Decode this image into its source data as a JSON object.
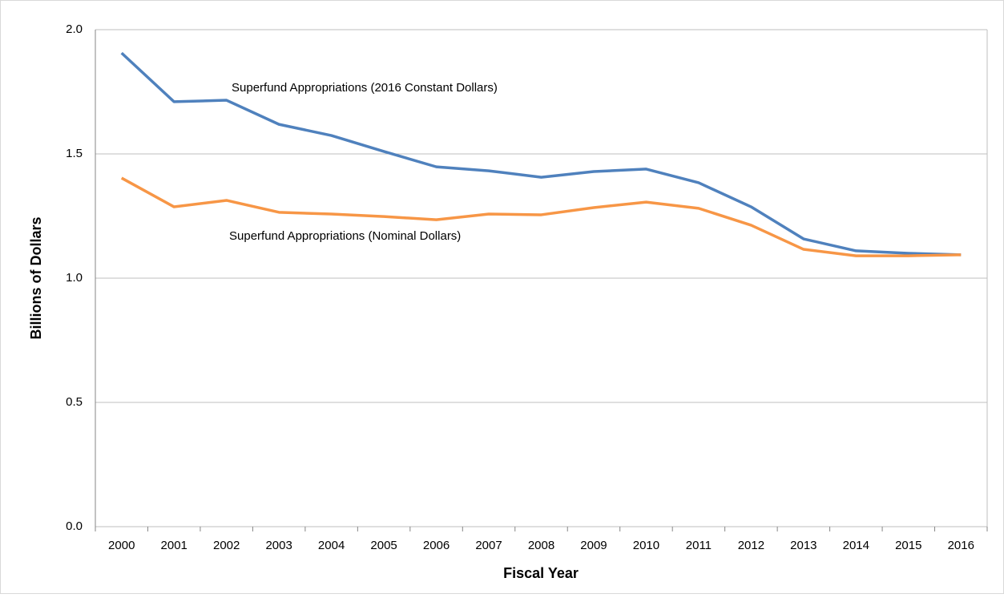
{
  "chart_data": {
    "type": "line",
    "x_label": "Fiscal Year",
    "y_label": "Billions of Dollars",
    "categories": [
      "2000",
      "2001",
      "2002",
      "2003",
      "2004",
      "2005",
      "2006",
      "2007",
      "2008",
      "2009",
      "2010",
      "2011",
      "2012",
      "2013",
      "2014",
      "2015",
      "2016"
    ],
    "series": [
      {
        "name": "Superfund Appropriations (2016 Constant Dollars)",
        "color": "#4f81bd",
        "values": [
          1.906,
          1.71,
          1.716,
          1.619,
          1.574,
          1.51,
          1.448,
          1.432,
          1.406,
          1.429,
          1.439,
          1.384,
          1.287,
          1.158,
          1.11,
          1.1,
          1.094
        ]
      },
      {
        "name": "Superfund Appropriations (Nominal Dollars)",
        "color": "#f79646",
        "values": [
          1.403,
          1.287,
          1.313,
          1.265,
          1.258,
          1.248,
          1.235,
          1.258,
          1.255,
          1.284,
          1.306,
          1.281,
          1.213,
          1.116,
          1.09,
          1.09,
          1.094
        ]
      }
    ],
    "ylim": [
      0,
      2
    ],
    "yticks": [
      {
        "value": 0,
        "label": "0.0"
      },
      {
        "value": 0.5,
        "label": "0.5"
      },
      {
        "value": 1,
        "label": "1.0"
      },
      {
        "value": 1.5,
        "label": "1.5"
      },
      {
        "value": 2,
        "label": "2.0"
      }
    ],
    "grid": true
  }
}
